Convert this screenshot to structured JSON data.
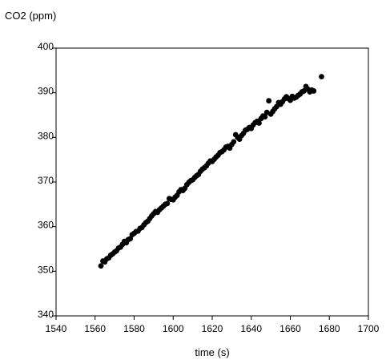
{
  "chart_data": {
    "type": "scatter",
    "title": "",
    "xlabel": "time (s)",
    "ylabel": "CO2 (ppm)",
    "xlim": [
      1540,
      1700
    ],
    "ylim": [
      340,
      400
    ],
    "x_ticks": [
      "1540",
      "1560",
      "1580",
      "1600",
      "1620",
      "1640",
      "1660",
      "1680",
      "1700"
    ],
    "y_ticks": [
      "340",
      "350",
      "360",
      "370",
      "380",
      "390",
      "400"
    ],
    "grid": false,
    "legend": "none",
    "marker_color": "#000000",
    "series": [
      {
        "points": [
          [
            1563,
            351.2
          ],
          [
            1564,
            352.3
          ],
          [
            1565,
            352.1
          ],
          [
            1566,
            352.8
          ],
          [
            1567,
            353.0
          ],
          [
            1568,
            353.6
          ],
          [
            1569,
            353.9
          ],
          [
            1570,
            354.3
          ],
          [
            1571,
            354.6
          ],
          [
            1572,
            355.2
          ],
          [
            1573,
            355.4
          ],
          [
            1574,
            356.0
          ],
          [
            1575,
            356.7
          ],
          [
            1576,
            356.4
          ],
          [
            1577,
            357.1
          ],
          [
            1578,
            357.3
          ],
          [
            1579,
            358.2
          ],
          [
            1580,
            358.5
          ],
          [
            1581,
            358.9
          ],
          [
            1582,
            359.0
          ],
          [
            1583,
            359.6
          ],
          [
            1584,
            359.8
          ],
          [
            1585,
            360.4
          ],
          [
            1586,
            360.9
          ],
          [
            1587,
            361.2
          ],
          [
            1588,
            361.8
          ],
          [
            1589,
            362.4
          ],
          [
            1590,
            362.9
          ],
          [
            1591,
            363.4
          ],
          [
            1592,
            363.2
          ],
          [
            1593,
            363.8
          ],
          [
            1594,
            364.2
          ],
          [
            1595,
            364.6
          ],
          [
            1596,
            365.0
          ],
          [
            1597,
            365.2
          ],
          [
            1598,
            366.3
          ],
          [
            1599,
            366.1
          ],
          [
            1600,
            366.0
          ],
          [
            1601,
            366.6
          ],
          [
            1602,
            367.0
          ],
          [
            1603,
            367.8
          ],
          [
            1604,
            368.3
          ],
          [
            1605,
            368.1
          ],
          [
            1606,
            368.6
          ],
          [
            1607,
            369.4
          ],
          [
            1608,
            369.9
          ],
          [
            1609,
            370.3
          ],
          [
            1610,
            370.5
          ],
          [
            1611,
            371.0
          ],
          [
            1612,
            371.4
          ],
          [
            1613,
            371.7
          ],
          [
            1614,
            372.4
          ],
          [
            1615,
            372.9
          ],
          [
            1616,
            373.2
          ],
          [
            1617,
            373.6
          ],
          [
            1618,
            374.2
          ],
          [
            1619,
            374.7
          ],
          [
            1620,
            374.6
          ],
          [
            1621,
            375.1
          ],
          [
            1622,
            375.6
          ],
          [
            1623,
            376.0
          ],
          [
            1624,
            376.6
          ],
          [
            1625,
            376.8
          ],
          [
            1626,
            377.2
          ],
          [
            1627,
            377.8
          ],
          [
            1628,
            378.0
          ],
          [
            1629,
            377.6
          ],
          [
            1630,
            378.4
          ],
          [
            1631,
            379.0
          ],
          [
            1632,
            380.6
          ],
          [
            1633,
            380.0
          ],
          [
            1634,
            379.6
          ],
          [
            1635,
            380.4
          ],
          [
            1636,
            380.9
          ],
          [
            1637,
            381.6
          ],
          [
            1638,
            381.8
          ],
          [
            1639,
            382.2
          ],
          [
            1640,
            382.0
          ],
          [
            1641,
            382.8
          ],
          [
            1642,
            383.3
          ],
          [
            1643,
            383.6
          ],
          [
            1644,
            383.2
          ],
          [
            1645,
            384.2
          ],
          [
            1646,
            384.8
          ],
          [
            1647,
            384.6
          ],
          [
            1648,
            385.6
          ],
          [
            1649,
            388.2
          ],
          [
            1650,
            385.2
          ],
          [
            1651,
            385.8
          ],
          [
            1652,
            386.4
          ],
          [
            1653,
            386.9
          ],
          [
            1654,
            387.8
          ],
          [
            1655,
            387.4
          ],
          [
            1656,
            388.0
          ],
          [
            1657,
            388.6
          ],
          [
            1658,
            389.1
          ],
          [
            1659,
            388.7
          ],
          [
            1660,
            388.3
          ],
          [
            1661,
            389.2
          ],
          [
            1662,
            388.8
          ],
          [
            1663,
            389.0
          ],
          [
            1664,
            389.4
          ],
          [
            1665,
            389.7
          ],
          [
            1666,
            390.2
          ],
          [
            1667,
            390.4
          ],
          [
            1668,
            391.4
          ],
          [
            1669,
            390.8
          ],
          [
            1670,
            390.2
          ],
          [
            1671,
            390.6
          ],
          [
            1672,
            390.4
          ],
          [
            1676,
            393.6
          ]
        ]
      }
    ]
  }
}
